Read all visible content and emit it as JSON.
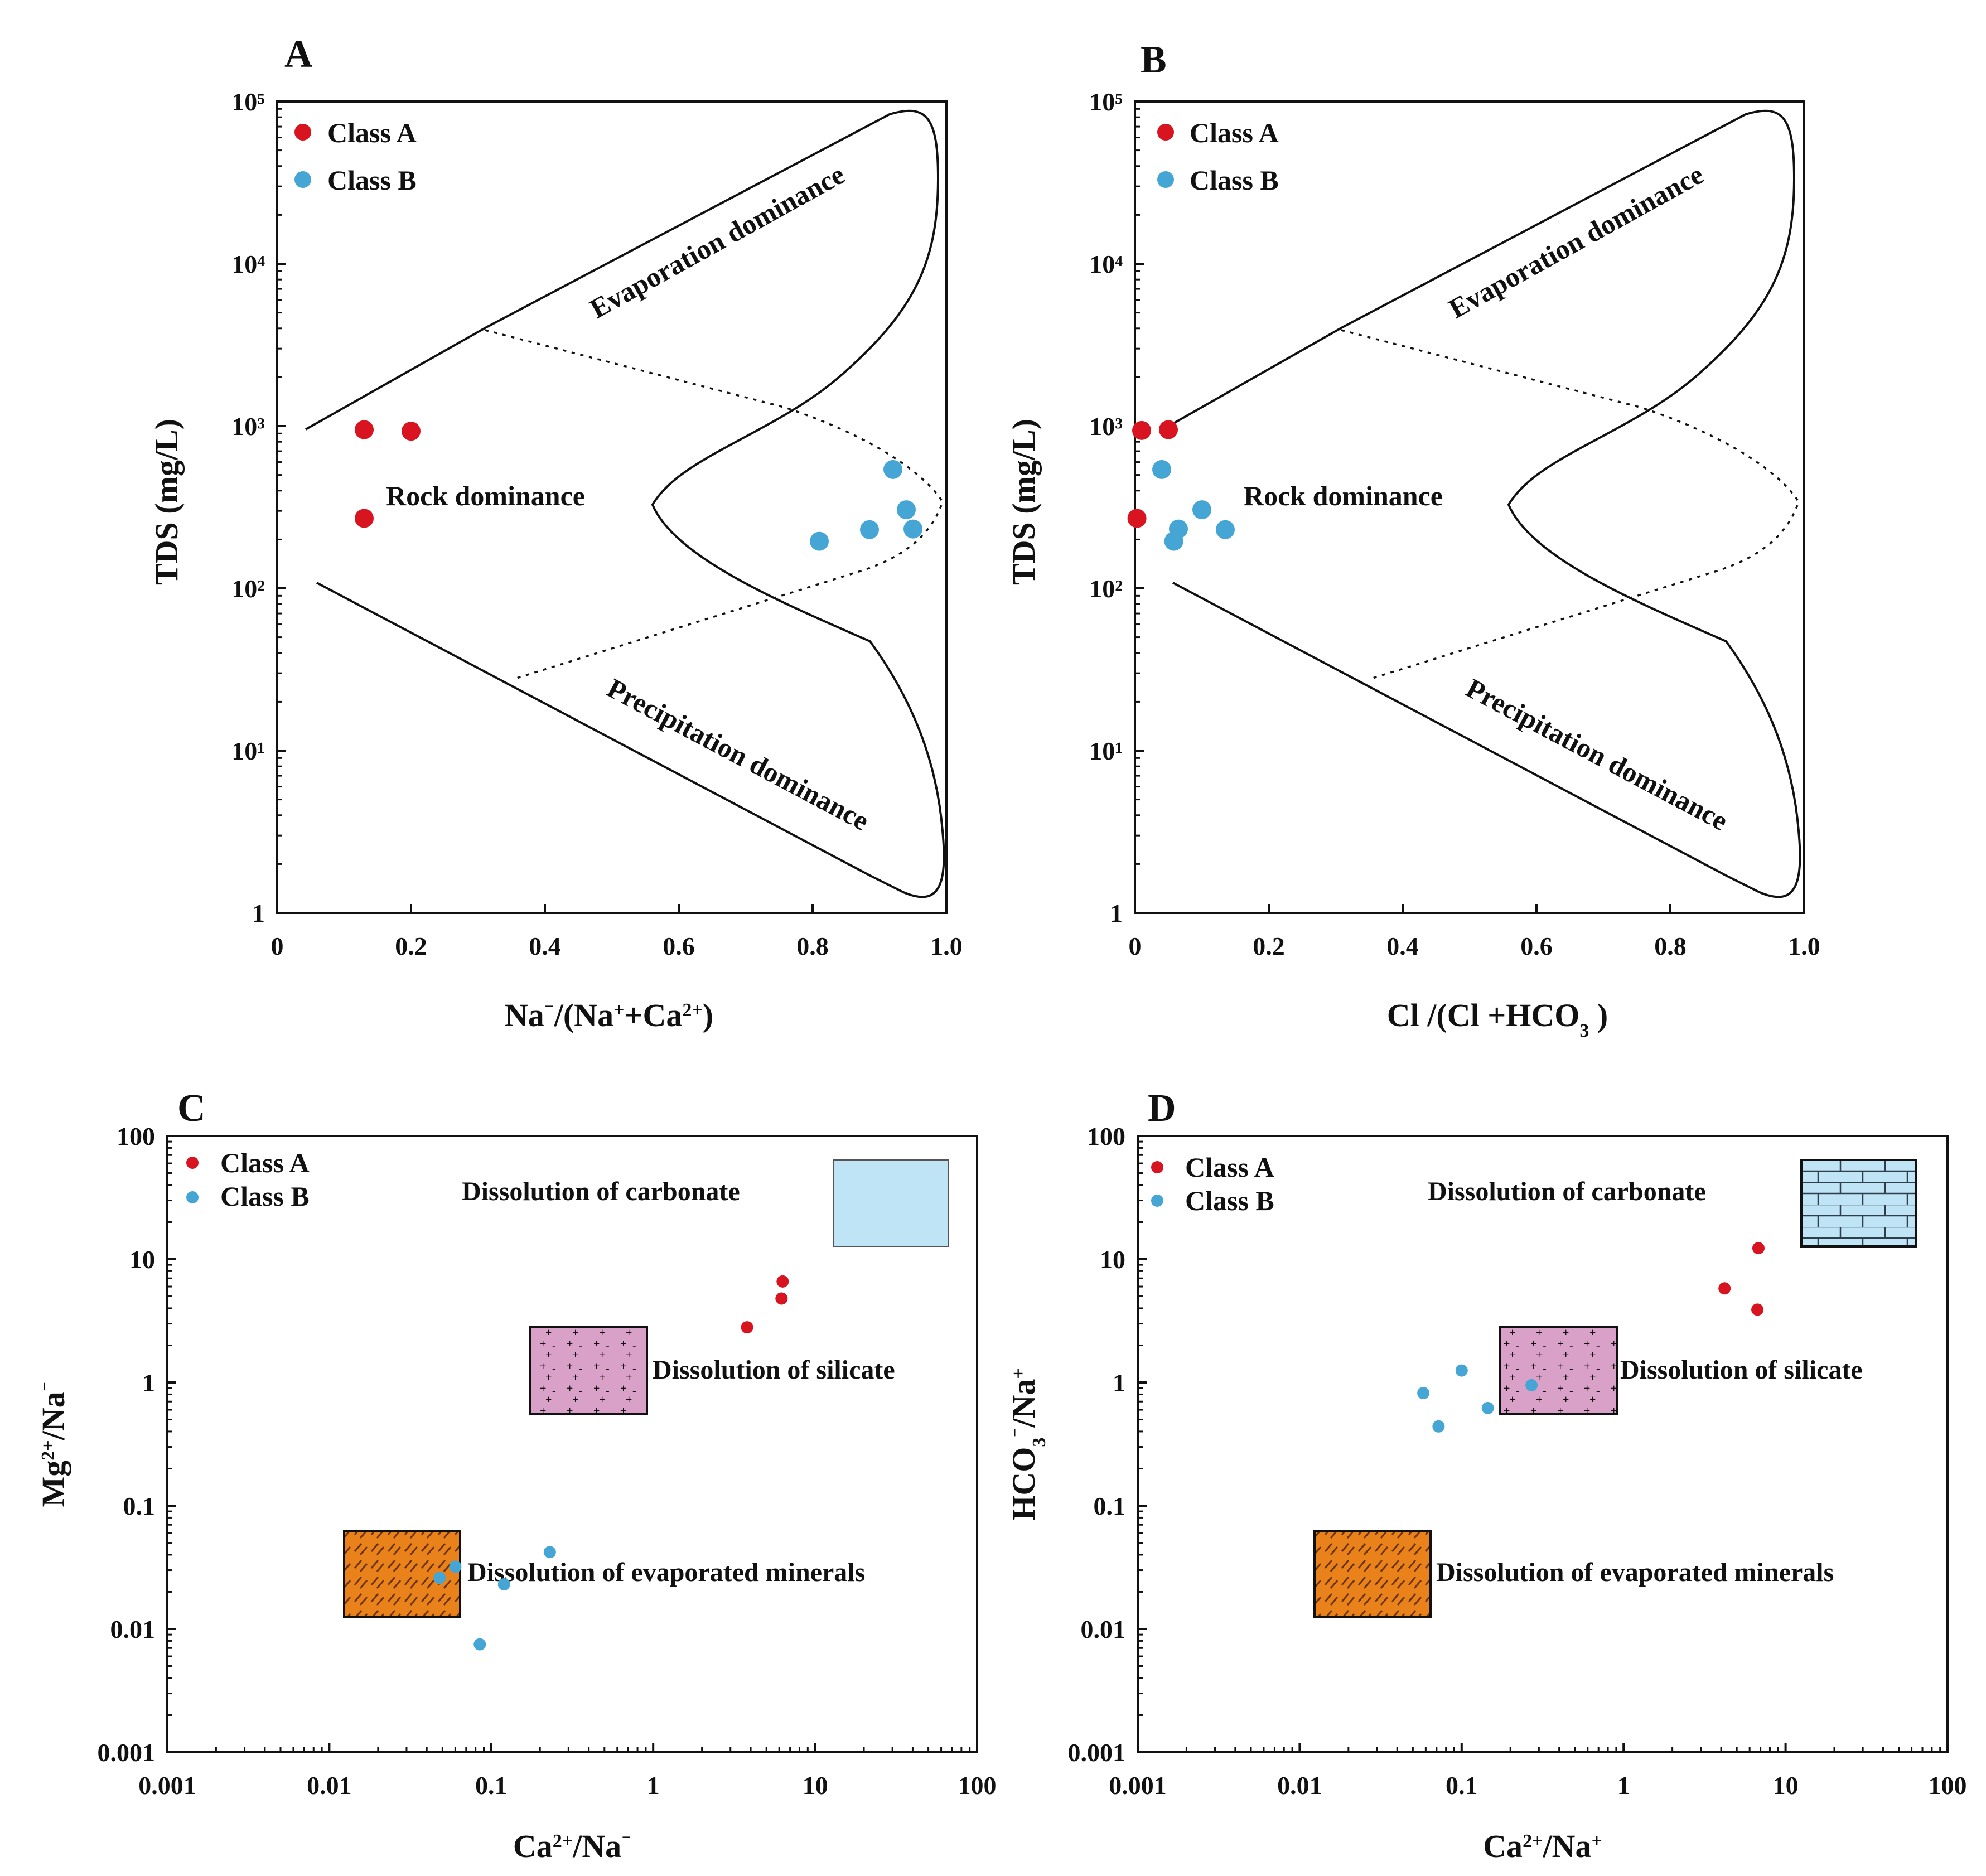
{
  "colors": {
    "class_a": "#d7141f",
    "class_b": "#45a6d6",
    "carbonate_fill": "#bfe4f5",
    "silicate_fill": "#d9a1c8",
    "evaporite_fill": "#e9821a",
    "axis": "#111111"
  },
  "chart_data": [
    {
      "id": "A",
      "type": "scatter",
      "panel_label": "A",
      "xlabel": "Na⁻/(Na⁺+Ca²⁺)",
      "ylabel": "TDS (mg/L)",
      "xlim": [
        0,
        1.0
      ],
      "ylim": [
        1,
        100000
      ],
      "yscale": "log",
      "xticks": [
        "0",
        "0.2",
        "0.4",
        "0.6",
        "0.8",
        "1.0"
      ],
      "yticks": [
        "1",
        "10¹",
        "10²",
        "10³",
        "10⁴",
        "10⁵"
      ],
      "legend": [
        "Class A",
        "Class B"
      ],
      "annotations": [
        "Evaporation dominance",
        "Rock dominance",
        "Precipitation dominance"
      ],
      "series": [
        {
          "name": "Class A",
          "points": [
            [
              0.13,
              950
            ],
            [
              0.2,
              930
            ],
            [
              0.13,
              270
            ]
          ]
        },
        {
          "name": "Class B",
          "points": [
            [
              0.92,
              540
            ],
            [
              0.94,
              305
            ],
            [
              0.95,
              232
            ],
            [
              0.885,
              230
            ],
            [
              0.81,
              195
            ]
          ]
        }
      ]
    },
    {
      "id": "B",
      "type": "scatter",
      "panel_label": "B",
      "xlabel": "Cl /(Cl +HCO₃ )",
      "ylabel": "TDS (mg/L)",
      "xlim": [
        0,
        1.0
      ],
      "ylim": [
        1,
        100000
      ],
      "yscale": "log",
      "xticks": [
        "0",
        "0.2",
        "0.4",
        "0.6",
        "0.8",
        "1.0"
      ],
      "yticks": [
        "1",
        "10¹",
        "10²",
        "10³",
        "10⁴",
        "10⁵"
      ],
      "legend": [
        "Class A",
        "Class B"
      ],
      "annotations": [
        "Evaporation dominance",
        "Rock dominance",
        "Precipitation dominance"
      ],
      "series": [
        {
          "name": "Class A",
          "points": [
            [
              0.01,
              940
            ],
            [
              0.05,
              950
            ],
            [
              0.003,
              270
            ]
          ]
        },
        {
          "name": "Class B",
          "points": [
            [
              0.04,
              540
            ],
            [
              0.1,
              305
            ],
            [
              0.065,
              232
            ],
            [
              0.135,
              230
            ],
            [
              0.058,
              195
            ]
          ]
        }
      ]
    },
    {
      "id": "C",
      "type": "scatter",
      "panel_label": "C",
      "xlabel": "Ca²⁺/Na⁻",
      "ylabel": "Mg²⁺/Na⁻",
      "xlim": [
        0.001,
        100
      ],
      "ylim": [
        0.001,
        100
      ],
      "xscale": "log",
      "yscale": "log",
      "xticks": [
        "0.001",
        "0.01",
        "0.1",
        "1",
        "10",
        "100"
      ],
      "yticks": [
        "0.001",
        "0.01",
        "0.1",
        "1",
        "10",
        "100"
      ],
      "legend": [
        "Class A",
        "Class B"
      ],
      "annotations": [
        "Dissolution of carbonate",
        "Dissolution of silicate",
        "Dissolution of evaporated minerals"
      ],
      "series": [
        {
          "name": "Class A",
          "points": [
            [
              3.8,
              2.8
            ],
            [
              6.2,
              4.8
            ],
            [
              6.3,
              6.6
            ]
          ]
        },
        {
          "name": "Class B",
          "points": [
            [
              0.048,
              0.026
            ],
            [
              0.06,
              0.032
            ],
            [
              0.12,
              0.023
            ],
            [
              0.23,
              0.042
            ],
            [
              0.085,
              0.0075
            ]
          ]
        }
      ]
    },
    {
      "id": "D",
      "type": "scatter",
      "panel_label": "D",
      "xlabel": "Ca²⁺/Na⁺",
      "ylabel": "HCO₃⁻/Na⁺",
      "xlim": [
        0.001,
        100
      ],
      "ylim": [
        0.001,
        100
      ],
      "xscale": "log",
      "yscale": "log",
      "xticks": [
        "0.001",
        "0.01",
        "0.1",
        "1",
        "10",
        "100"
      ],
      "yticks": [
        "0.001",
        "0.01",
        "0.1",
        "1",
        "10",
        "100"
      ],
      "legend": [
        "Class A",
        "Class B"
      ],
      "annotations": [
        "Dissolution of carbonate",
        "Dissolution of silicate",
        "Dissolution of evaporated minerals"
      ],
      "series": [
        {
          "name": "Class A",
          "points": [
            [
              4.2,
              5.8
            ],
            [
              6.8,
              12.3
            ],
            [
              6.7,
              3.9
            ]
          ]
        },
        {
          "name": "Class B",
          "points": [
            [
              0.058,
              0.82
            ],
            [
              0.1,
              1.25
            ],
            [
              0.072,
              0.44
            ],
            [
              0.145,
              0.62
            ],
            [
              0.27,
              0.95
            ]
          ]
        }
      ]
    }
  ]
}
